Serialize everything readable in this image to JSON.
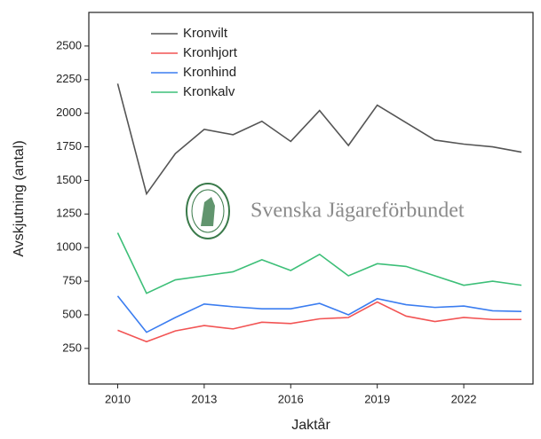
{
  "chart_data": {
    "type": "line",
    "x_label": "Jaktår",
    "y_label": "Avskjutning (antal)",
    "annotation": "Svenska Jägareförbundet",
    "x": [
      2010,
      2011,
      2012,
      2013,
      2014,
      2015,
      2016,
      2017,
      2018,
      2019,
      2020,
      2021,
      2022,
      2023,
      2024
    ],
    "series": [
      {
        "name": "Kronvilt",
        "color": "#555555",
        "values": [
          2220,
          1400,
          1700,
          1880,
          1840,
          1940,
          1790,
          2020,
          1760,
          2060,
          1930,
          1800,
          1770,
          1750,
          1710
        ]
      },
      {
        "name": "Kronhjort",
        "color": "#f25454",
        "values": [
          385,
          300,
          380,
          420,
          395,
          445,
          435,
          470,
          480,
          595,
          490,
          450,
          480,
          465,
          465
        ]
      },
      {
        "name": "Kronhind",
        "color": "#3b7df0",
        "values": [
          640,
          370,
          480,
          580,
          560,
          545,
          545,
          585,
          500,
          620,
          575,
          555,
          565,
          530,
          525
        ]
      },
      {
        "name": "Kronkalv",
        "color": "#3dbf78",
        "values": [
          1110,
          660,
          760,
          790,
          820,
          910,
          830,
          950,
          790,
          880,
          860,
          790,
          720,
          750,
          720
        ]
      }
    ],
    "xlim": [
      2009,
      2024.4
    ],
    "xticks": [
      2010,
      2013,
      2016,
      2019,
      2022
    ],
    "ylim": [
      -15,
      2750
    ],
    "yticks": [
      250,
      500,
      750,
      1000,
      1250,
      1500,
      1750,
      2000,
      2250,
      2500
    ],
    "legend": "upper left"
  }
}
